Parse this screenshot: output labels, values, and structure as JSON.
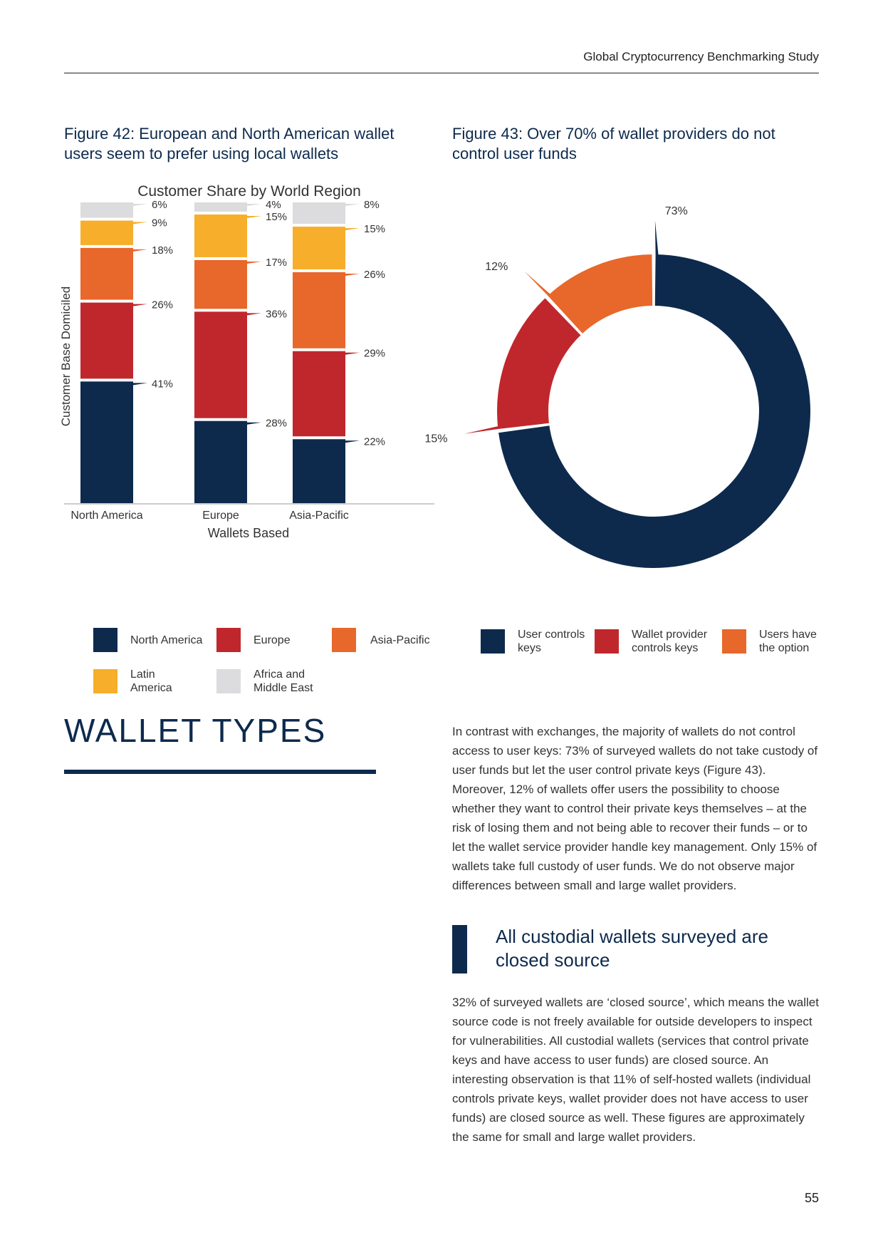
{
  "header": {
    "title": "Global Cryptocurrency Benchmarking Study"
  },
  "figure42": {
    "caption": "Figure 42: European and North American wallet users seem to prefer using local wallets"
  },
  "figure43": {
    "caption": "Figure 43: Over 70% of wallet providers do not control user funds"
  },
  "chart_data": [
    {
      "type": "bar",
      "stacked": true,
      "title": "Customer Share by World Region",
      "xlabel": "Wallets Based",
      "ylabel": "Customer Base Domiciled",
      "categories": [
        "North America",
        "Europe",
        "Asia-Pacific"
      ],
      "series": [
        {
          "name": "North America",
          "color": "#0d2a4d",
          "values": [
            41,
            28,
            22
          ]
        },
        {
          "name": "Europe",
          "color": "#c0272d",
          "values": [
            26,
            36,
            29
          ]
        },
        {
          "name": "Asia-Pacific",
          "color": "#e8672a",
          "values": [
            18,
            17,
            26
          ]
        },
        {
          "name": "Latin America",
          "color": "#f7ae2b",
          "values": [
            9,
            15,
            15
          ]
        },
        {
          "name": "Africa and Middle East",
          "color": "#dcdcde",
          "values": [
            6,
            4,
            8
          ]
        }
      ],
      "data_labels": [
        [
          "41%",
          "26%",
          "18%",
          "9%",
          "6%"
        ],
        [
          "28%",
          "36%",
          "17%",
          "15%",
          "4%"
        ],
        [
          "22%",
          "29%",
          "26%",
          "15%",
          "8%"
        ]
      ],
      "legend": {
        "position": "bottom",
        "items": [
          "North America",
          "Europe",
          "Asia-Pacific",
          "Latin\nAmerica",
          "Africa and\nMiddle East"
        ]
      }
    },
    {
      "type": "pie",
      "donut": true,
      "slices": [
        {
          "name": "User controls keys",
          "value": 73,
          "label": "73%",
          "color": "#0d2a4d"
        },
        {
          "name": "Wallet provider controls keys",
          "value": 15,
          "label": "15%",
          "color": "#c0272d"
        },
        {
          "name": "Users have the option",
          "value": 12,
          "label": "12%",
          "color": "#e8672a"
        }
      ],
      "legend": {
        "position": "bottom",
        "items": [
          "User controls\nkeys",
          "Wallet provider\ncontrols keys",
          "Users have\nthe option"
        ]
      }
    }
  ],
  "section": {
    "title": "WALLET TYPES",
    "paragraph1": "In contrast with exchanges, the majority of wallets do not control access to user keys: 73% of surveyed wallets do not take custody of user funds but let the user control private keys (Figure 43). Moreover, 12% of wallets offer users the possibility to choose whether they want to control their private keys themselves – at the risk of losing them and not being able to recover their funds – or to let the wallet service provider handle key management. Only 15% of wallets take full custody of user funds. We do not observe major differences between small and large wallet providers.",
    "subheading": "All custodial wallets surveyed are closed source",
    "paragraph2": "32% of surveyed wallets are ‘closed source’, which means the wallet source code is not freely available for outside developers to inspect for vulnerabilities. All custodial wallets (services that control private keys and have access to user funds) are closed source. An interesting observation is that 11% of self-hosted wallets (individual controls private keys, wallet provider does not have access to user funds) are closed source as well. These figures are approximately the same for small and large wallet providers."
  },
  "page_number": "55"
}
